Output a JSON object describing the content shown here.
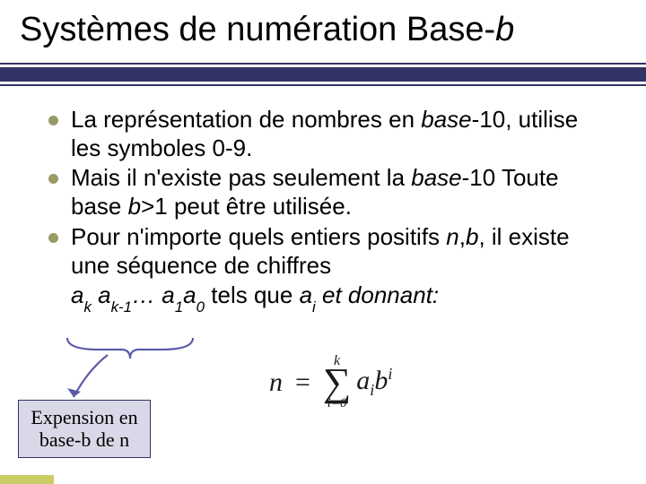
{
  "colors": {
    "bar": "#333366",
    "bullet": "#9a9a66",
    "accent_side": "#cccc66",
    "brace": "#5b5ba8",
    "arrow": "#5b5ba8",
    "callout_bg": "#d8d8e8",
    "callout_border": "#333366",
    "text": "#000000"
  },
  "title": {
    "prefix": "Systèmes de numération Base-",
    "suffix_italic": "b",
    "fontsize": 38
  },
  "bullets": {
    "fontsize": 26,
    "items": [
      {
        "parts": [
          {
            "t": "La représentation de nombres en ",
            "i": false
          },
          {
            "t": "base",
            "i": true
          },
          {
            "t": "-10, utilise les symboles 0-9.",
            "i": false
          }
        ]
      },
      {
        "parts": [
          {
            "t": "Mais il n'existe pas seulement la ",
            "i": false
          },
          {
            "t": "base",
            "i": true
          },
          {
            "t": "-10 Toute base ",
            "i": false
          },
          {
            "t": "b",
            "i": true
          },
          {
            "t": ">1 peut être utilisée.",
            "i": false
          }
        ]
      },
      {
        "parts": [
          {
            "t": "Pour n'importe quels entiers positifs ",
            "i": false
          },
          {
            "t": "n",
            "i": true
          },
          {
            "t": ",",
            "i": false
          },
          {
            "t": "b",
            "i": true
          },
          {
            "t": ", il existe une séquence de chiffres",
            "i": false
          }
        ]
      }
    ],
    "trailing_line": {
      "sequence_html": "a<sub>k</sub> a<sub>k-1</sub>… a<sub>1</sub>a<sub>0</sub>",
      "mid": " tels que ",
      "cond_html": "a<sub>i</sub><b",
      "tail": " et donnant:"
    }
  },
  "callout": {
    "line1": "Expension en",
    "line2": "base-b de n",
    "fontsize": 22
  },
  "formula": {
    "lhs": "n",
    "eq": "=",
    "sigma_top": "k",
    "sigma_bot": "i=0",
    "rhs_html": "a<sub>i</sub>b<sup>i</sup>"
  }
}
